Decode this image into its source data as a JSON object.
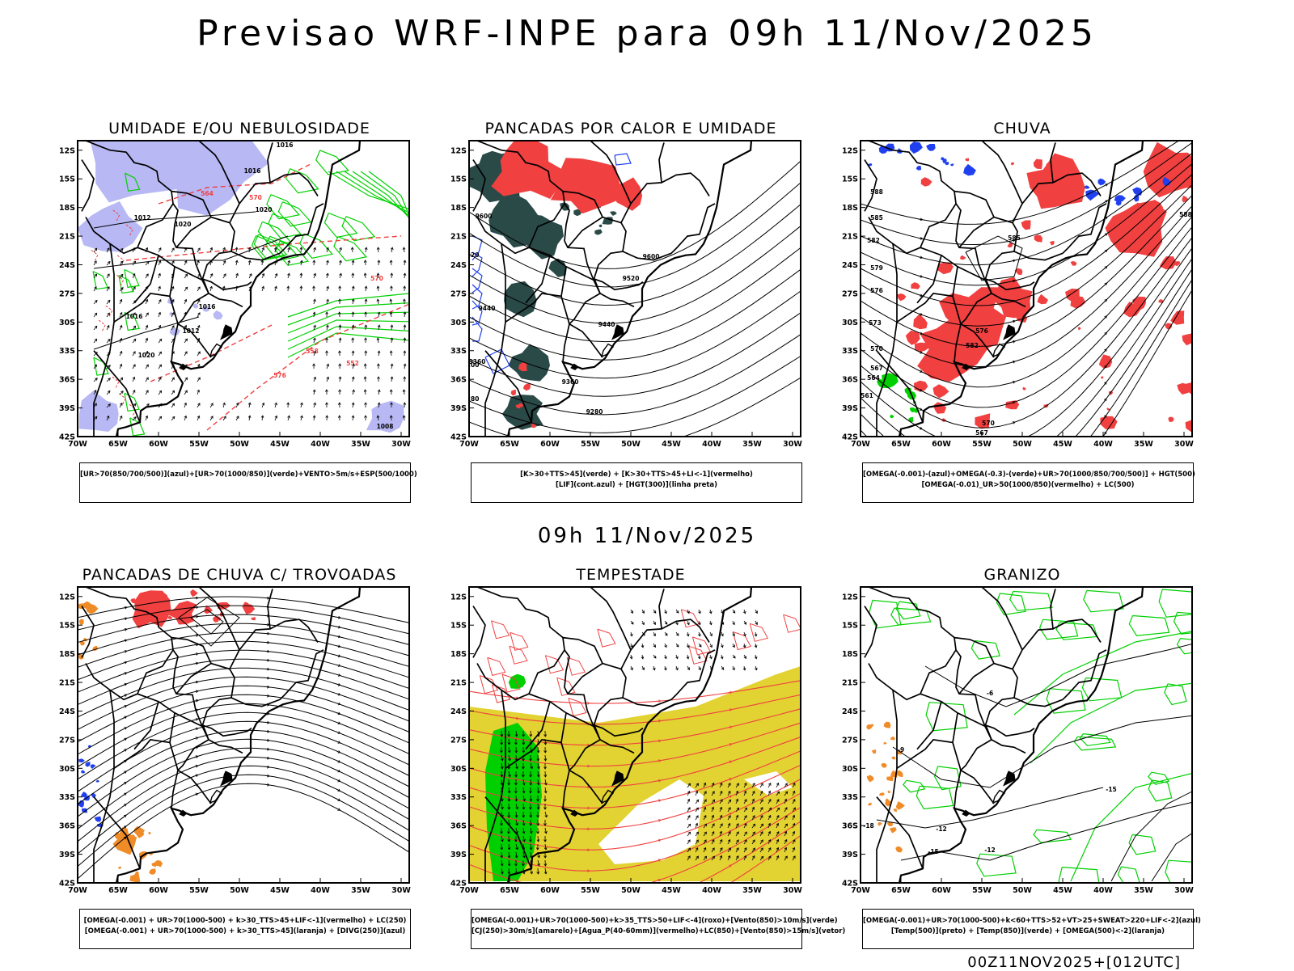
{
  "main_title": "Previsao WRF-INPE  para 09h 11/Nov/2025",
  "mid_title": "09h 11/Nov/2025",
  "footer": "00Z11NOV2025+[012UTC]",
  "lat_labels": [
    "12S",
    "15S",
    "18S",
    "21S",
    "24S",
    "27S",
    "30S",
    "33S",
    "36S",
    "39S",
    "42S"
  ],
  "lon_labels": [
    "70W",
    "65W",
    "60W",
    "55W",
    "50W",
    "45W",
    "40W",
    "35W",
    "30W"
  ],
  "colors": {
    "red": "#f04040",
    "green": "#00d000",
    "lavender": "#b8b8f4",
    "blue": "#2040f0",
    "darkteal": "#2a4a48",
    "yellow": "#e2d232",
    "orange": "#f08c28",
    "black": "#000000"
  },
  "panels": [
    {
      "title": "UMIDADE E/OU NEBULOSIDADE",
      "legend": [
        "[UR>70(850/700/500)](azul)+[UR>70(1000/850)](verde)+VENTO>5m/s+ESP(500/1000)"
      ]
    },
    {
      "title": "PANCADAS POR CALOR E UMIDADE",
      "legend": [
        "[K>30+TTS>45](verde)  +  [K>30+TTS>45+LI<-1](vermelho)",
        "[LIF](cont.azul)  +  [HGT(300)](linha preta)"
      ]
    },
    {
      "title": "CHUVA",
      "legend": [
        "[OMEGA(-0.001)-(azul)+OMEGA(-0.3)-(verde)+UR>70(1000/850/700/500)]  +  HGT(500)",
        "[OMEGA(-0.01)_UR>50(1000/850)(vermelho)  +  LC(500)"
      ]
    },
    {
      "title": "PANCADAS DE CHUVA C/ TROVOADAS",
      "legend": [
        "[OMEGA(-0.001)  +  UR>70(1000-500)  +  k>30_TTS>45+LIF<-1](vermelho)  +  LC(250)",
        "[OMEGA(-0.001)  +  UR>70(1000-500)  +  k>30_TTS>45](laranja)  +  [DIVG(250)](azul)"
      ]
    },
    {
      "title": "TEMPESTADE",
      "legend": [
        "[OMEGA(-0.001)+UR>70(1000-500)+k>35_TTS>50+LIF<-4](roxo)+[Vento(850)>10m/s](verde)",
        "[CJ(250)>30m/s](amarelo)+[Agua_P(40-60mm)](vermelho)+LC(850)+[Vento(850)>15m/s](vetor)"
      ]
    },
    {
      "title": "GRANIZO",
      "legend": [
        "[OMEGA(-0.001)+UR>70(1000-500)+k<60+TTS>52+VT>25+SWEAT>220+LIF<-2](azul)",
        "[Temp(500)](preto)  +  [Temp(850)](verde)  +  [OMEGA(500)<-2](laranja)"
      ]
    }
  ],
  "contour_labels": {
    "p1": [
      "1016",
      "1016",
      "1012",
      "1020",
      "1020",
      "1016",
      "1012",
      "1020",
      "1016",
      "1008",
      "564",
      "570",
      "576",
      "558",
      "552",
      "570"
    ],
    "p2": [
      "9600",
      "9520",
      "9440",
      "9360",
      "9280",
      "9600",
      "9520",
      "9440",
      "9360",
      "9280",
      "9200"
    ],
    "p3": [
      "588",
      "585",
      "582",
      "579",
      "576",
      "573",
      "570",
      "567",
      "564",
      "561",
      "576",
      "570",
      "567",
      "588",
      "585",
      "582"
    ],
    "p6": [
      "-6",
      "-9",
      "-12",
      "-15",
      "-18",
      "-15",
      "-12"
    ]
  }
}
